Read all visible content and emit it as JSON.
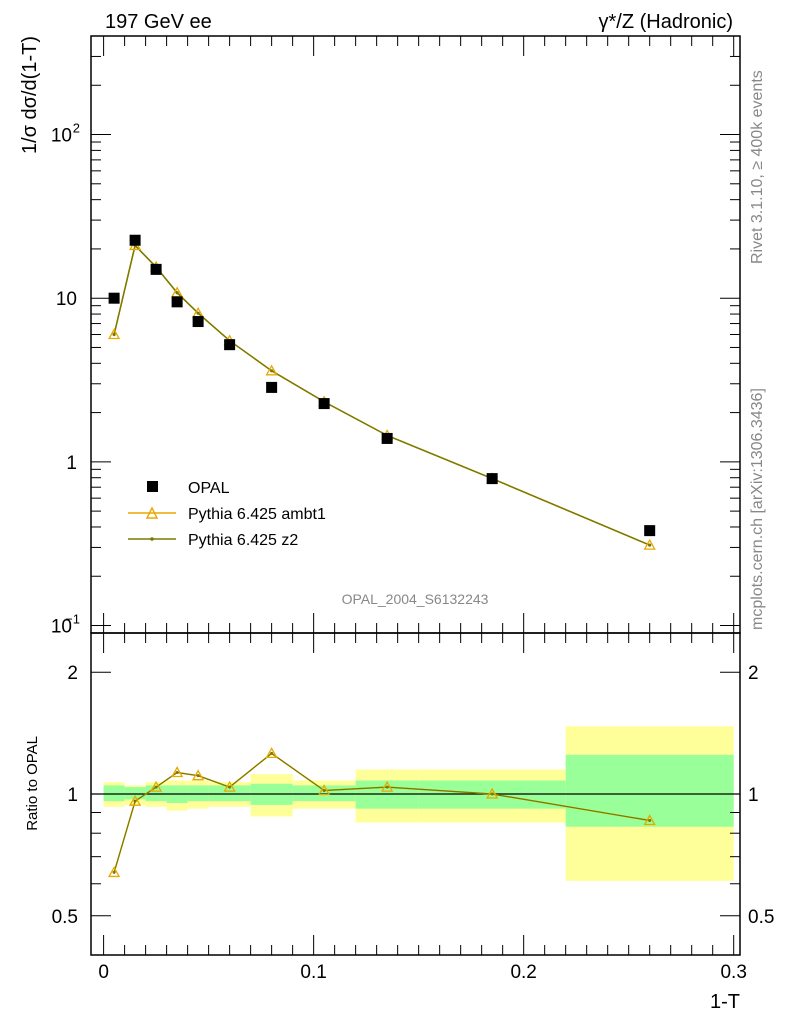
{
  "header": {
    "left": "197 GeV ee",
    "right": "γ*/Z (Hadronic)"
  },
  "side_text": {
    "top": "Rivet 3.1.10, ≥ 400k events",
    "bottom": "mcplots.cern.ch [arXiv:1306.3436]"
  },
  "watermark": "OPAL_2004_S6132243",
  "chart_data": {
    "type": "scatter",
    "y_scale": "log",
    "ylabel": "1/σ dσ/d(1-T)",
    "xlabel": "1-T",
    "xlim": [
      0.0,
      0.3
    ],
    "ylim": [
      0.09,
      400
    ],
    "x_ticks": [
      "0",
      "0.1",
      "0.2",
      "0.3"
    ],
    "y_ticks": [
      {
        "value": 0.1,
        "base": "10",
        "exp": "−1"
      },
      {
        "value": 1,
        "base": "1",
        "exp": ""
      },
      {
        "value": 10,
        "base": "10",
        "exp": ""
      },
      {
        "value": 100,
        "base": "10",
        "exp": "2"
      }
    ],
    "legend_position": "lower-left",
    "series": [
      {
        "name": "OPAL",
        "color": "#000000",
        "marker": "square",
        "x": [
          0.005,
          0.015,
          0.025,
          0.035,
          0.045,
          0.06,
          0.08,
          0.105,
          0.135,
          0.185,
          0.26
        ],
        "y": [
          10.0,
          22.6,
          15.0,
          9.5,
          7.2,
          5.2,
          2.85,
          2.27,
          1.39,
          0.79,
          0.38
        ]
      },
      {
        "name": "Pythia 6.425 ambt1",
        "color": "#E8A800",
        "marker": "triangle",
        "x": [
          0.005,
          0.015,
          0.025,
          0.035,
          0.045,
          0.06,
          0.08,
          0.105,
          0.135,
          0.185,
          0.26
        ],
        "y": [
          6.0,
          21.0,
          15.5,
          10.8,
          8.1,
          5.5,
          3.6,
          2.33,
          1.45,
          0.79,
          0.31
        ]
      },
      {
        "name": "Pythia 6.425 z2",
        "color": "#7A7A00",
        "marker": "dot",
        "x": [
          0.005,
          0.015,
          0.025,
          0.035,
          0.045,
          0.06,
          0.08,
          0.105,
          0.135,
          0.185,
          0.26
        ],
        "y": [
          6.0,
          21.0,
          15.5,
          10.8,
          8.1,
          5.5,
          3.6,
          2.33,
          1.45,
          0.79,
          0.31
        ]
      }
    ],
    "ratio": {
      "ylabel": "Ratio to OPAL",
      "ylim": [
        0.4,
        2.5
      ],
      "y_ticks": [
        "0.5",
        "1",
        "2"
      ],
      "y_tick_values": [
        0.5,
        1,
        2
      ],
      "bins": [
        {
          "lo": 0.0,
          "hi": 0.01,
          "stat": [
            0.96,
            1.05
          ],
          "total": [
            0.93,
            1.07
          ]
        },
        {
          "lo": 0.01,
          "hi": 0.02,
          "stat": [
            0.97,
            1.04
          ],
          "total": [
            0.94,
            1.05
          ]
        },
        {
          "lo": 0.02,
          "hi": 0.03,
          "stat": [
            0.96,
            1.05
          ],
          "total": [
            0.93,
            1.07
          ]
        },
        {
          "lo": 0.03,
          "hi": 0.04,
          "stat": [
            0.95,
            1.05
          ],
          "total": [
            0.91,
            1.08
          ]
        },
        {
          "lo": 0.04,
          "hi": 0.05,
          "stat": [
            0.96,
            1.05
          ],
          "total": [
            0.92,
            1.08
          ]
        },
        {
          "lo": 0.05,
          "hi": 0.07,
          "stat": [
            0.96,
            1.05
          ],
          "total": [
            0.93,
            1.07
          ]
        },
        {
          "lo": 0.07,
          "hi": 0.09,
          "stat": [
            0.94,
            1.06
          ],
          "total": [
            0.88,
            1.12
          ]
        },
        {
          "lo": 0.09,
          "hi": 0.12,
          "stat": [
            0.96,
            1.05
          ],
          "total": [
            0.92,
            1.08
          ]
        },
        {
          "lo": 0.12,
          "hi": 0.15,
          "stat": [
            0.92,
            1.08
          ],
          "total": [
            0.85,
            1.15
          ]
        },
        {
          "lo": 0.15,
          "hi": 0.22,
          "stat": [
            0.92,
            1.08
          ],
          "total": [
            0.85,
            1.15
          ]
        },
        {
          "lo": 0.22,
          "hi": 0.3,
          "stat": [
            0.83,
            1.25
          ],
          "total": [
            0.61,
            1.47
          ]
        }
      ],
      "ratio_x": [
        0.005,
        0.015,
        0.025,
        0.035,
        0.045,
        0.06,
        0.08,
        0.105,
        0.135,
        0.185,
        0.26
      ],
      "ratio_y": [
        0.64,
        0.96,
        1.04,
        1.13,
        1.11,
        1.04,
        1.26,
        1.02,
        1.04,
        1.0,
        0.86
      ]
    }
  }
}
